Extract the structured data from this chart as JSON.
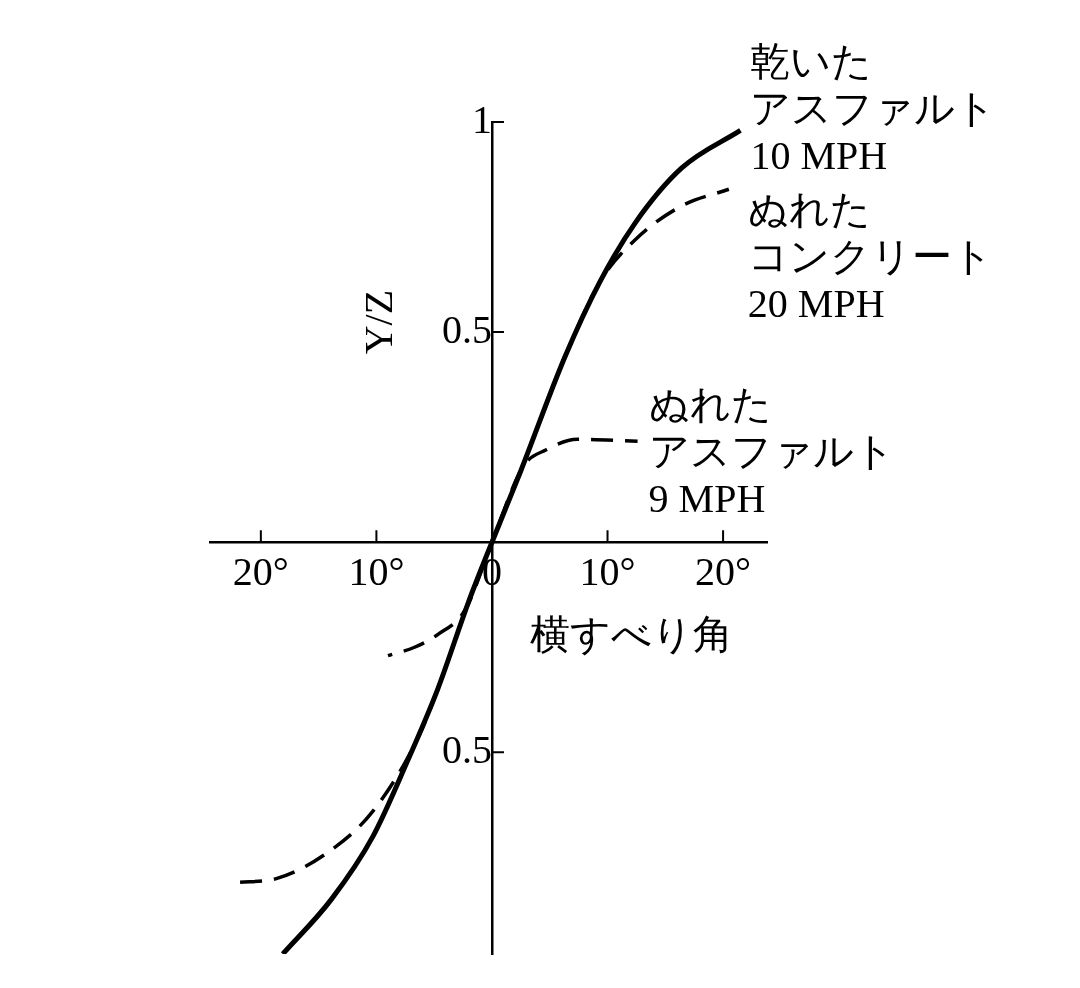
{
  "chart_data": {
    "type": "line",
    "xlabel": "横すべり角",
    "ylabel": "Y/Z",
    "xlim": [
      -24.4,
      23.8
    ],
    "ylim": [
      -0.98,
      1
    ],
    "xticks": [
      {
        "value": -20,
        "label": "20°"
      },
      {
        "value": -10,
        "label": "10°"
      },
      0,
      {
        "value": 10,
        "label": "10°"
      },
      {
        "value": 20,
        "label": "20°"
      }
    ],
    "yticks": [
      {
        "value": -0.5,
        "label": "0.5"
      },
      0.5,
      1
    ],
    "marker": "none",
    "series": [
      {
        "name": "乾いたアスファルト 10 MPH",
        "color": "#000000",
        "line_style": "solid",
        "x": [
          -18.1,
          -13.9,
          -10.3,
          -7.3,
          -4.7,
          -2.0,
          0,
          2.5,
          6.3,
          9.35,
          12.4,
          16.4,
          21.5
        ],
        "values": [
          -0.98,
          -0.85,
          -0.7,
          -0.52,
          -0.35,
          -0.14,
          0,
          0.17,
          0.44,
          0.62,
          0.76,
          0.89,
          0.98
        ]
      },
      {
        "name": "ぬれたコンクリート 20 MPH",
        "color": "#000000",
        "line_style": "dashed",
        "x": [
          -22.1,
          -18.6,
          -14.3,
          -10.3,
          -6.3,
          -4.7,
          -2.0,
          0,
          2.5,
          6.3,
          9.35,
          12.4,
          16.4,
          20.5
        ],
        "values": [
          -0.81,
          -0.8,
          -0.74,
          -0.64,
          -0.46,
          -0.35,
          -0.14,
          0,
          0.17,
          0.44,
          0.62,
          0.72,
          0.8,
          0.84
        ]
      },
      {
        "name": "ぬれたアスファルト 9 MPH",
        "color": "#000000",
        "line_style": "dashed",
        "x": [
          -9.0,
          -6.7,
          -4.7,
          -2.3,
          0,
          2.7,
          4.7,
          7.4,
          12.6
        ],
        "values": [
          -0.27,
          -0.25,
          -0.22,
          -0.16,
          0,
          0.18,
          0.22,
          0.245,
          0.24
        ]
      }
    ]
  }
}
